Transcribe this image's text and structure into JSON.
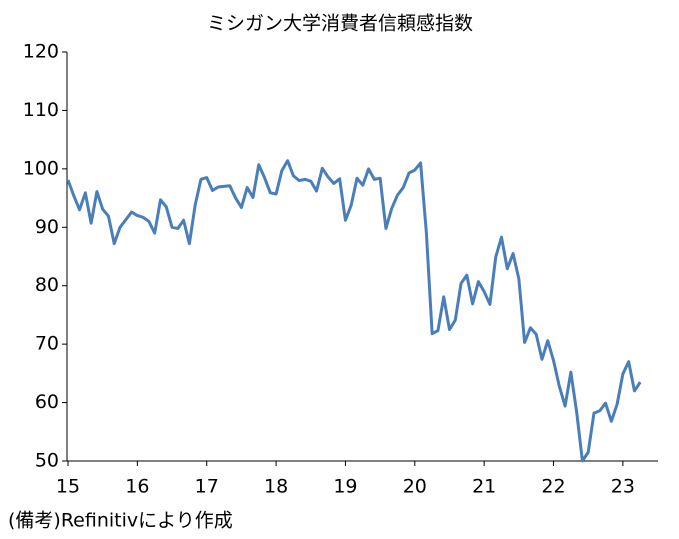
{
  "chart_data": {
    "type": "line",
    "title": "ミシガン大学消費者信頼感指数",
    "note": "(備考)Refinitivにより作成",
    "categories": [
      "15",
      null,
      null,
      null,
      null,
      null,
      null,
      null,
      null,
      null,
      null,
      null,
      "16",
      null,
      null,
      null,
      null,
      null,
      null,
      null,
      null,
      null,
      null,
      null,
      "17",
      null,
      null,
      null,
      null,
      null,
      null,
      null,
      null,
      null,
      null,
      null,
      "18",
      null,
      null,
      null,
      null,
      null,
      null,
      null,
      null,
      null,
      null,
      null,
      "19",
      null,
      null,
      null,
      null,
      null,
      null,
      null,
      null,
      null,
      null,
      null,
      "20",
      null,
      null,
      null,
      null,
      null,
      null,
      null,
      null,
      null,
      null,
      null,
      "21",
      null,
      null,
      null,
      null,
      null,
      null,
      null,
      null,
      null,
      null,
      null,
      "22",
      null,
      null,
      null,
      null,
      null,
      null,
      null,
      null,
      null,
      null,
      null,
      "23",
      null,
      null,
      null
    ],
    "series": [
      {
        "name": "ミシガン大学消費者信頼感指数",
        "color": "#4a7ebb",
        "values": [
          98.1,
          95.4,
          93.0,
          95.9,
          90.7,
          96.1,
          93.1,
          91.9,
          87.2,
          90.0,
          91.3,
          92.6,
          92.0,
          91.7,
          91.0,
          89.0,
          94.7,
          93.5,
          90.0,
          89.8,
          91.2,
          87.2,
          93.8,
          98.2,
          98.5,
          96.3,
          96.9,
          97.0,
          97.1,
          95.0,
          93.4,
          96.8,
          95.1,
          100.7,
          98.5,
          95.9,
          95.7,
          99.7,
          101.4,
          98.8,
          98.0,
          98.2,
          97.9,
          96.2,
          100.1,
          98.6,
          97.5,
          98.3,
          91.2,
          93.8,
          98.4,
          97.2,
          100.0,
          98.2,
          98.4,
          89.8,
          93.2,
          95.5,
          96.8,
          99.3,
          99.8,
          101.0,
          89.1,
          71.8,
          72.3,
          78.1,
          72.5,
          74.1,
          80.4,
          81.8,
          76.9,
          80.7,
          79.0,
          76.8,
          84.9,
          88.3,
          82.9,
          85.5,
          81.2,
          70.3,
          72.8,
          71.7,
          67.4,
          70.6,
          67.2,
          62.8,
          59.4,
          65.2,
          58.4,
          50.0,
          51.5,
          58.2,
          58.6,
          59.9,
          56.8,
          59.7,
          64.9,
          67.0,
          62.0,
          63.5
        ]
      }
    ],
    "ylim": [
      50,
      120
    ],
    "yticks": [
      50,
      60,
      70,
      80,
      90,
      100,
      110,
      120
    ],
    "grid": false
  }
}
